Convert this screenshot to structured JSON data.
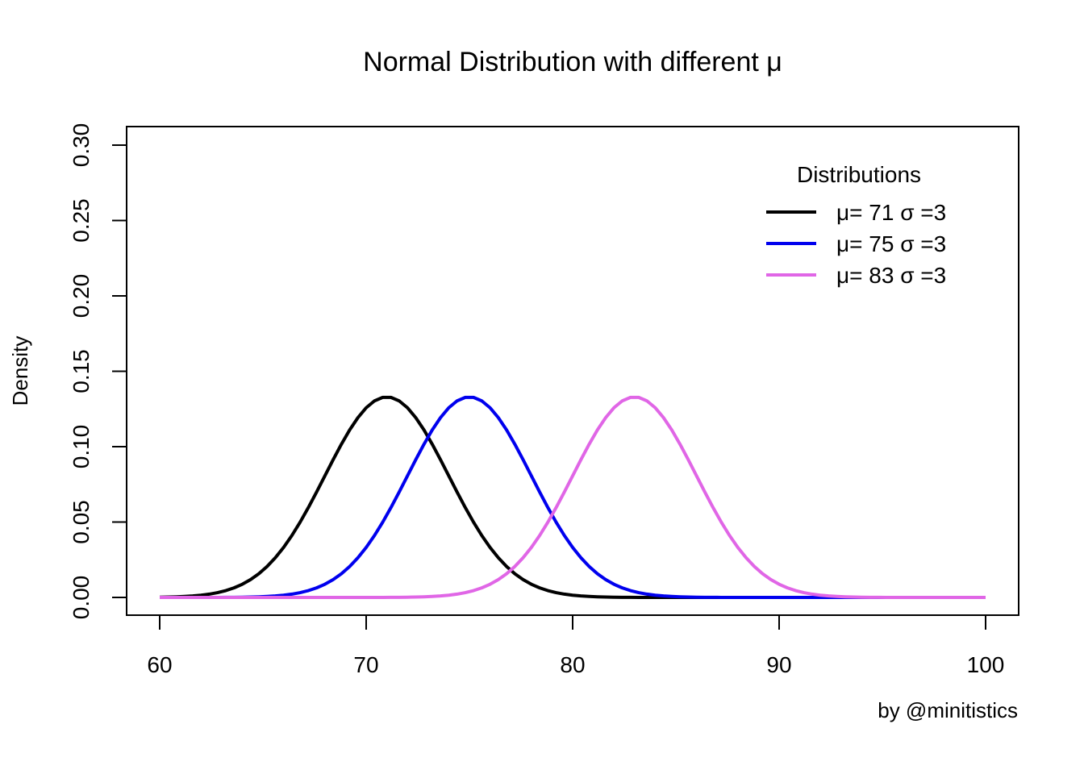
{
  "chart_data": {
    "type": "line",
    "title": "Normal Distribution with different μ",
    "xlabel": "",
    "ylabel": "Density",
    "caption": "by @minitistics",
    "xlim": [
      60,
      100
    ],
    "ylim": [
      0,
      0.3
    ],
    "x_ticks": [
      "60",
      "70",
      "80",
      "90",
      "100"
    ],
    "y_ticks": [
      "0.00",
      "0.05",
      "0.10",
      "0.15",
      "0.20",
      "0.25",
      "0.30"
    ],
    "grid": false,
    "legend": {
      "title": "Distributions",
      "position": "top-right",
      "entries": [
        "μ= 71 σ =3",
        "μ= 75 σ =3",
        "μ= 83 σ =3"
      ]
    },
    "series": [
      {
        "mean": 71,
        "sd": 3,
        "color": "#000000"
      },
      {
        "mean": 75,
        "sd": 3,
        "color": "#0000ee"
      },
      {
        "mean": 83,
        "sd": 3,
        "color": "#e066e6"
      }
    ]
  }
}
